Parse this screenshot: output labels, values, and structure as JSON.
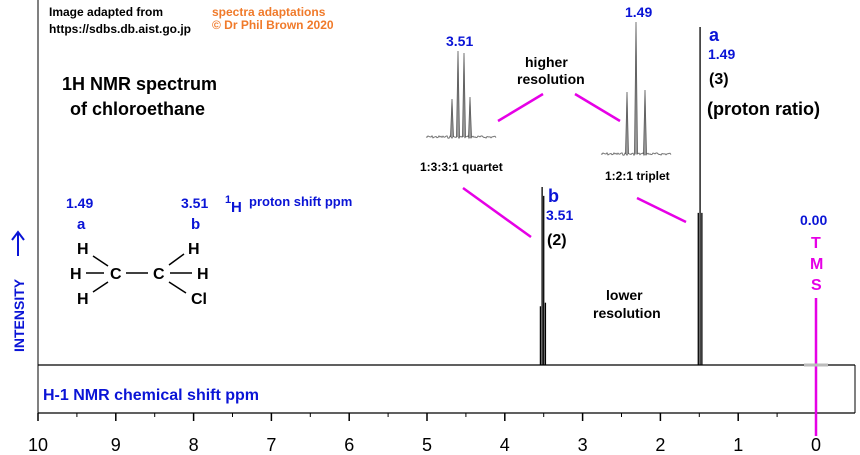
{
  "credits": {
    "source_line1": "Image adapted from",
    "source_line2": "https://sdbs.db.aist.go.jp",
    "author_line1": "spectra adaptations",
    "author_line2": "© Dr Phil Brown 2020"
  },
  "title_line1": "1H NMR spectrum",
  "title_line2": "of chloroethane",
  "y_axis_label": "INTENSITY",
  "x_axis_label": "H-1 NMR chemical shift  ppm",
  "legend": {
    "shift_a": "1.49",
    "shift_b": "3.51",
    "label_a": "a",
    "label_b": "b",
    "shift_caption_sup": "1",
    "shift_caption_h": "H",
    "shift_caption_rest": "proton shift  ppm"
  },
  "molecule": {
    "atoms": [
      "H",
      "H",
      "H",
      "C",
      "C",
      "H",
      "H",
      "Cl"
    ]
  },
  "peak_labels": {
    "b_letter": "b",
    "b_shift": "3.51",
    "b_ratio": "(2)",
    "a_letter": "a",
    "a_shift": "1.49",
    "a_ratio": "(3)",
    "ratio_caption": "(proton ratio)"
  },
  "tms": {
    "shift": "0.00",
    "letters": [
      "T",
      "M",
      "S"
    ]
  },
  "insets": {
    "higher_res_line1": "higher",
    "higher_res_line2": "resolution",
    "lower_res_line1": "lower",
    "lower_res_line2": "resolution",
    "quartet_shift": "3.51",
    "quartet_caption": "1:3:3:1 quartet",
    "triplet_shift": "1.49",
    "triplet_caption": "1:2:1 triplet"
  },
  "colors": {
    "blue": "#0a14d6",
    "magenta": "#e600e6",
    "orange": "#f07a2a",
    "black": "#000000",
    "grey": "#888888"
  },
  "chart_data": {
    "type": "line",
    "xlabel": "H-1 NMR chemical shift  ppm",
    "ylabel": "INTENSITY",
    "xlim": [
      10,
      0
    ],
    "x_ticks": [
      10,
      9,
      8,
      7,
      6,
      5,
      4,
      3,
      2,
      1,
      0
    ],
    "peaks": [
      {
        "label": "b",
        "shift": 3.51,
        "proton_ratio": 2,
        "multiplicity": "quartet",
        "pattern": "1:3:3:1"
      },
      {
        "label": "a",
        "shift": 1.49,
        "proton_ratio": 3,
        "multiplicity": "triplet",
        "pattern": "1:2:1"
      },
      {
        "label": "TMS",
        "shift": 0.0
      }
    ]
  }
}
